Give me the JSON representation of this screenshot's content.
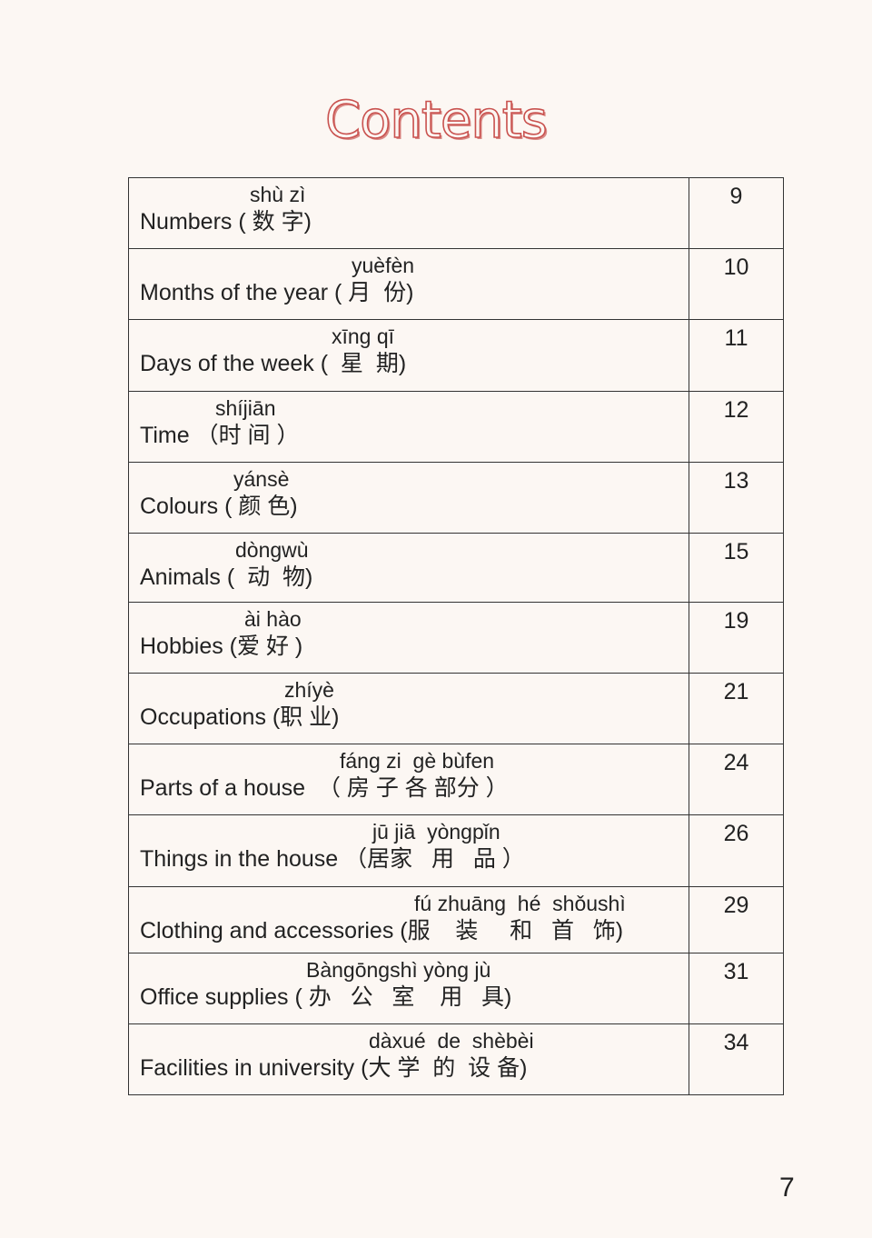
{
  "title": "Contents",
  "entries": [
    {
      "pinyin": "shù zì",
      "label": "Numbers ( 数 字)",
      "page": "9"
    },
    {
      "pinyin": "yuèfèn",
      "label": "Months of the year ( 月  份)",
      "page": "10"
    },
    {
      "pinyin": "xīng qī",
      "label": "Days of the week (  星  期)",
      "page": "11"
    },
    {
      "pinyin": "shíjiān",
      "label": "Time （时 间 ）",
      "page": "12"
    },
    {
      "pinyin": "yánsè",
      "label": "Colours ( 颜 色)",
      "page": "13"
    },
    {
      "pinyin": "dòngwù",
      "label": "Animals (  动  物)",
      "page": "15"
    },
    {
      "pinyin": "ài hào",
      "label": "Hobbies (爱 好 )",
      "page": "19"
    },
    {
      "pinyin": "zhíyè",
      "label": "Occupations (职 业)",
      "page": "21"
    },
    {
      "pinyin": "fáng zi  gè bùfen",
      "label": "Parts of a house  （ 房 子 各 部分 ）",
      "page": "24"
    },
    {
      "pinyin": "jū jiā  yòngpǐn",
      "label": "Things in the house （居家   用   品 ）",
      "page": "26"
    },
    {
      "pinyin": "fú zhuāng  hé  shǒushì",
      "label": "Clothing and accessories (服    装     和   首   饰)",
      "page": "29"
    },
    {
      "pinyin": "Bàngōngshì yòng jù",
      "label": "Office supplies ( 办   公   室    用   具)",
      "page": "31"
    },
    {
      "pinyin": "dàxué  de  shèbèi",
      "label": "Facilities in university (大 学  的  设 备)",
      "page": "34"
    }
  ],
  "page_number": "7"
}
